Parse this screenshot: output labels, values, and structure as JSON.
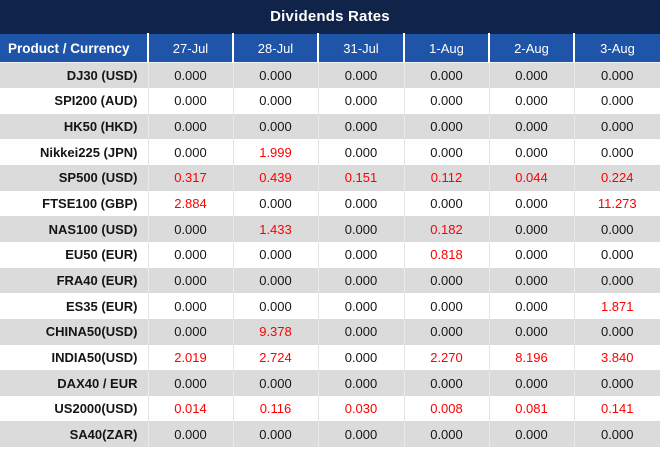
{
  "title": "Dividends Rates",
  "table": {
    "product_header": "Product / Currency",
    "date_headers": [
      "27-Jul",
      "28-Jul",
      "31-Jul",
      "1-Aug",
      "2-Aug",
      "3-Aug"
    ],
    "rows": [
      {
        "product": "DJ30 (USD)",
        "values": [
          "0.000",
          "0.000",
          "0.000",
          "0.000",
          "0.000",
          "0.000"
        ],
        "red": [
          0,
          0,
          0,
          0,
          0,
          0
        ]
      },
      {
        "product": "SPI200 (AUD)",
        "values": [
          "0.000",
          "0.000",
          "0.000",
          "0.000",
          "0.000",
          "0.000"
        ],
        "red": [
          0,
          0,
          0,
          0,
          0,
          0
        ]
      },
      {
        "product": "HK50 (HKD)",
        "values": [
          "0.000",
          "0.000",
          "0.000",
          "0.000",
          "0.000",
          "0.000"
        ],
        "red": [
          0,
          0,
          0,
          0,
          0,
          0
        ]
      },
      {
        "product": "Nikkei225 (JPN)",
        "values": [
          "0.000",
          "1.999",
          "0.000",
          "0.000",
          "0.000",
          "0.000"
        ],
        "red": [
          0,
          1,
          0,
          0,
          0,
          0
        ]
      },
      {
        "product": "SP500 (USD)",
        "values": [
          "0.317",
          "0.439",
          "0.151",
          "0.112",
          "0.044",
          "0.224"
        ],
        "red": [
          1,
          1,
          1,
          1,
          1,
          1
        ]
      },
      {
        "product": "FTSE100 (GBP)",
        "values": [
          "2.884",
          "0.000",
          "0.000",
          "0.000",
          "0.000",
          "11.273"
        ],
        "red": [
          1,
          0,
          0,
          0,
          0,
          1
        ]
      },
      {
        "product": "NAS100 (USD)",
        "values": [
          "0.000",
          "1.433",
          "0.000",
          "0.182",
          "0.000",
          "0.000"
        ],
        "red": [
          0,
          1,
          0,
          1,
          0,
          0
        ]
      },
      {
        "product": "EU50 (EUR)",
        "values": [
          "0.000",
          "0.000",
          "0.000",
          "0.818",
          "0.000",
          "0.000"
        ],
        "red": [
          0,
          0,
          0,
          1,
          0,
          0
        ]
      },
      {
        "product": "FRA40 (EUR)",
        "values": [
          "0.000",
          "0.000",
          "0.000",
          "0.000",
          "0.000",
          "0.000"
        ],
        "red": [
          0,
          0,
          0,
          0,
          0,
          0
        ]
      },
      {
        "product": "ES35 (EUR)",
        "values": [
          "0.000",
          "0.000",
          "0.000",
          "0.000",
          "0.000",
          "1.871"
        ],
        "red": [
          0,
          0,
          0,
          0,
          0,
          1
        ]
      },
      {
        "product": "CHINA50(USD)",
        "values": [
          "0.000",
          "9.378",
          "0.000",
          "0.000",
          "0.000",
          "0.000"
        ],
        "red": [
          0,
          1,
          0,
          0,
          0,
          0
        ]
      },
      {
        "product": "INDIA50(USD)",
        "values": [
          "2.019",
          "2.724",
          "0.000",
          "2.270",
          "8.196",
          "3.840"
        ],
        "red": [
          1,
          1,
          0,
          1,
          1,
          1
        ]
      },
      {
        "product": "DAX40 / EUR",
        "values": [
          "0.000",
          "0.000",
          "0.000",
          "0.000",
          "0.000",
          "0.000"
        ],
        "red": [
          0,
          0,
          0,
          0,
          0,
          0
        ]
      },
      {
        "product": "US2000(USD)",
        "values": [
          "0.014",
          "0.116",
          "0.030",
          "0.008",
          "0.081",
          "0.141"
        ],
        "red": [
          1,
          1,
          1,
          1,
          1,
          1
        ]
      },
      {
        "product": "SA40(ZAR)",
        "values": [
          "0.000",
          "0.000",
          "0.000",
          "0.000",
          "0.000",
          "0.000"
        ],
        "red": [
          0,
          0,
          0,
          0,
          0,
          0
        ]
      }
    ]
  },
  "colors": {
    "title_bg": "#10244a",
    "header_bg": "#1e55a8",
    "row_alt_bg": "#dbdbdb",
    "row_bg": "#ffffff",
    "value_red": "#fe0000",
    "value_black": "#151515"
  }
}
